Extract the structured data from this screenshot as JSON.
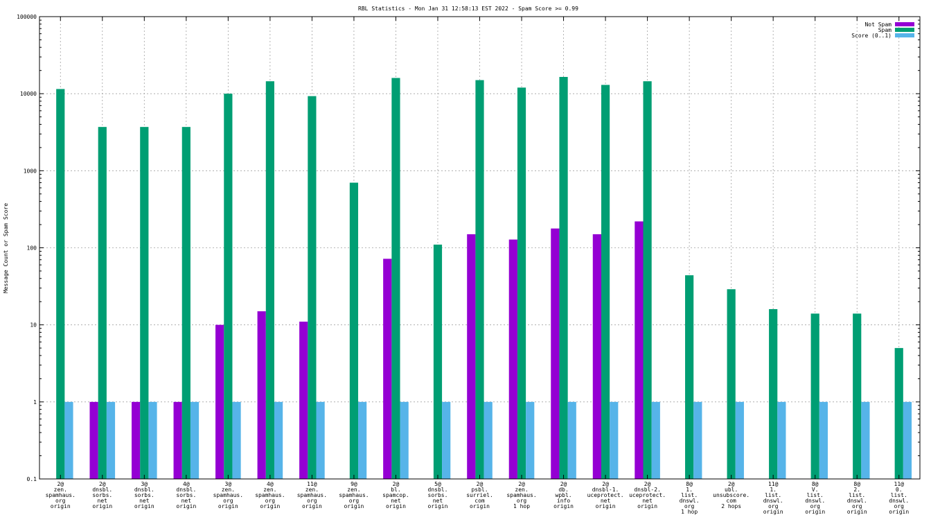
{
  "chart_data": {
    "type": "bar",
    "title": "RBL Statistics - Mon Jan 31 12:58:13 EST 2022 - Spam Score >= 0.99",
    "ylabel": "Message Count or Spam Score",
    "xlabel": "",
    "yscale": "log",
    "ylim": [
      0.1,
      100000
    ],
    "yticks": [
      "0.1",
      "1",
      "10",
      "100",
      "1000",
      "10000",
      "100000"
    ],
    "grid": true,
    "legend_position": "top-right",
    "categories": [
      [
        "2@",
        "zen.",
        "spamhaus.",
        "org",
        "origin"
      ],
      [
        "2@",
        "dnsbl.",
        "sorbs.",
        "net",
        "origin"
      ],
      [
        "3@",
        "dnsbl.",
        "sorbs.",
        "net",
        "origin"
      ],
      [
        "4@",
        "dnsbl.",
        "sorbs.",
        "net",
        "origin"
      ],
      [
        "3@",
        "zen.",
        "spamhaus.",
        "org",
        "origin"
      ],
      [
        "4@",
        "zen.",
        "spamhaus.",
        "org",
        "origin"
      ],
      [
        "11@",
        "zen.",
        "spamhaus.",
        "org",
        "origin"
      ],
      [
        "9@",
        "zen.",
        "spamhaus.",
        "org",
        "origin"
      ],
      [
        "2@",
        "bl.",
        "spamcop.",
        "net",
        "origin"
      ],
      [
        "5@",
        "dnsbl.",
        "sorbs.",
        "net",
        "origin"
      ],
      [
        "2@",
        "psbl.",
        "surriel.",
        "com",
        "origin"
      ],
      [
        "2@",
        "zen.",
        "spamhaus.",
        "org",
        "1 hop"
      ],
      [
        "2@",
        "db.",
        "wpbl.",
        "info",
        "origin"
      ],
      [
        "2@",
        "dnsbl-1.",
        "uceprotect.",
        "net",
        "origin"
      ],
      [
        "2@",
        "dnsbl-2.",
        "uceprotect.",
        "net",
        "origin"
      ],
      [
        "8@",
        "1.",
        "list.",
        "dnswl.",
        "org",
        "1 hop"
      ],
      [
        "2@",
        "ubl.",
        "unsubscore.",
        "com",
        "2 hops"
      ],
      [
        "11@",
        "1.",
        "list.",
        "dnswl.",
        "org",
        "origin"
      ],
      [
        "8@",
        "V.",
        "list.",
        "dnswl.",
        "org",
        "origin"
      ],
      [
        "8@",
        "2.",
        "list.",
        "dnswl.",
        "org",
        "origin"
      ],
      [
        "11@",
        "0.",
        "list.",
        "dnswl.",
        "org",
        "origin"
      ]
    ],
    "series": [
      {
        "name": "Not Spam",
        "color": "#9400d3",
        "values": [
          null,
          1,
          1,
          1,
          10,
          15,
          11,
          null,
          72,
          null,
          150,
          128,
          178,
          150,
          220,
          null,
          null,
          null,
          null,
          null,
          null
        ]
      },
      {
        "name": "Spam",
        "color": "#009e73",
        "values": [
          11500,
          3700,
          3700,
          3700,
          10000,
          14500,
          9300,
          700,
          16000,
          110,
          15000,
          12000,
          16500,
          13000,
          14500,
          44,
          29,
          16,
          14,
          14,
          5
        ]
      },
      {
        "name": "Score (0..1)",
        "color": "#56b4e9",
        "values": [
          1,
          1,
          1,
          1,
          1,
          1,
          1,
          1,
          1,
          1,
          1,
          1,
          1,
          1,
          1,
          1,
          1,
          1,
          1,
          1,
          1
        ]
      }
    ]
  }
}
